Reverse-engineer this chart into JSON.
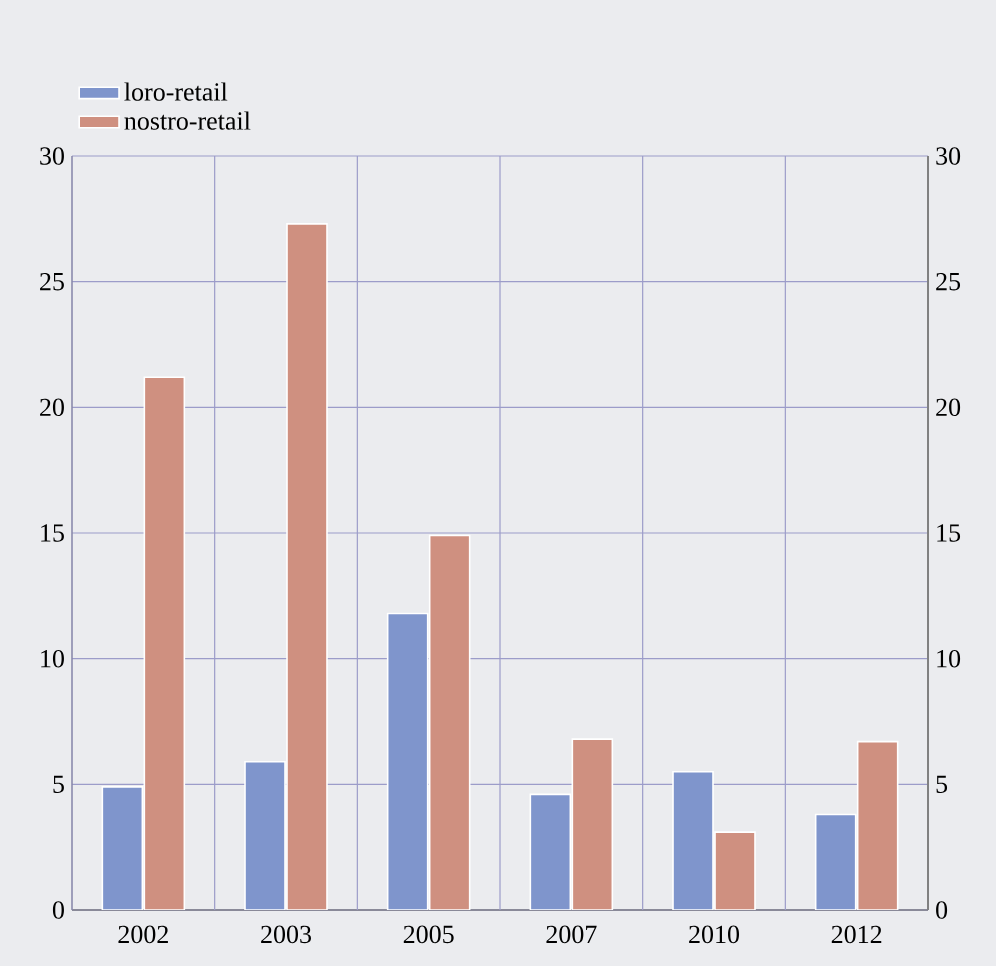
{
  "chart_data": {
    "type": "bar",
    "categories": [
      "2002",
      "2003",
      "2005",
      "2007",
      "2010",
      "2012"
    ],
    "series": [
      {
        "name": "loro-retail",
        "color": "#7f95cc",
        "values": [
          4.9,
          5.9,
          11.8,
          4.6,
          5.5,
          3.8
        ]
      },
      {
        "name": "nostro-retail",
        "color": "#cf9080",
        "values": [
          21.2,
          27.3,
          14.9,
          6.8,
          3.1,
          6.7
        ]
      }
    ],
    "ylim": [
      0,
      30
    ],
    "yticks": [
      0,
      5,
      10,
      15,
      20,
      25,
      30
    ],
    "y2lim": [
      0,
      30
    ],
    "y2ticks": [
      0,
      5,
      10,
      15,
      20,
      25,
      30
    ],
    "grid": true,
    "legend": "top left"
  }
}
